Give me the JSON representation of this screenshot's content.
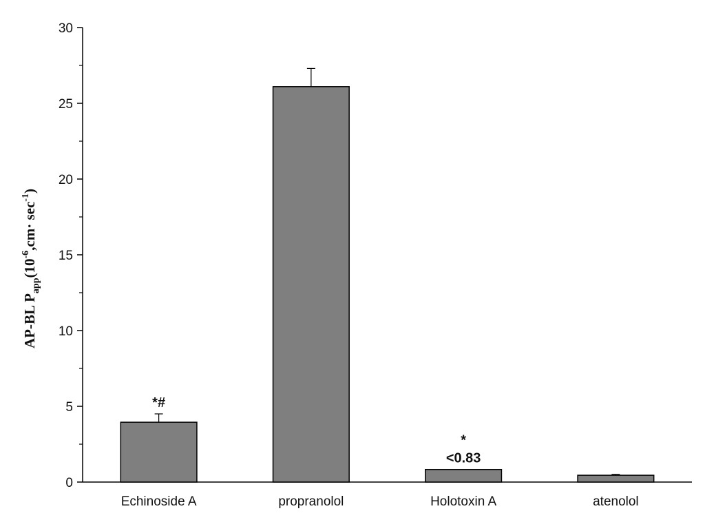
{
  "chart_data": {
    "type": "bar",
    "categories": [
      "Echinoside A",
      "propranolol",
      "Holotoxin A",
      "atenolol"
    ],
    "values": [
      3.95,
      26.1,
      0.83,
      0.45
    ],
    "errors": [
      0.55,
      1.2,
      0.0,
      0.06
    ],
    "annotations": [
      {
        "category": "Echinoside A",
        "lines": [
          "*#"
        ]
      },
      {
        "category": "Holotoxin A",
        "lines": [
          "*",
          "<0.83"
        ]
      }
    ],
    "ylabel": {
      "main": "AP-BL P",
      "sub": "app",
      "unit_open": "(10",
      "unit_exp": "-6",
      "unit_mid": ",cm· sec",
      "unit_exp2": "-1",
      "unit_close": ")"
    },
    "xlabel": "",
    "ylim": [
      0,
      30
    ],
    "yticks": [
      0,
      5,
      10,
      15,
      20,
      25,
      30
    ],
    "bar_color": "#7f7f7f",
    "grid": false
  }
}
